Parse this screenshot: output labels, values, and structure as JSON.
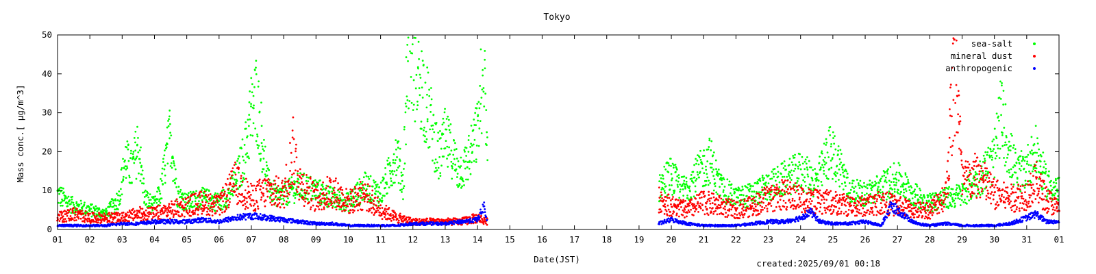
{
  "chart_data": {
    "type": "scatter",
    "title": "Tokyo",
    "xlabel": "Date(JST)",
    "ylabel": "Mass conc.[ μg/m^3]",
    "x_tick_labels": [
      "01",
      "02",
      "03",
      "04",
      "05",
      "06",
      "07",
      "08",
      "09",
      "10",
      "11",
      "12",
      "13",
      "14",
      "15",
      "16",
      "17",
      "18",
      "19",
      "20",
      "21",
      "22",
      "23",
      "24",
      "25",
      "26",
      "27",
      "28",
      "29",
      "30",
      "31",
      "01"
    ],
    "ylim": [
      0,
      50
    ],
    "y_ticks": [
      0,
      10,
      20,
      30,
      40,
      50
    ],
    "xlim_days": [
      0,
      31
    ],
    "gap_days": [
      13.3,
      18.6
    ],
    "grid": false,
    "legend_position": "top-right",
    "series": [
      {
        "name": "sea-salt",
        "color": "#00ff00",
        "samples": [
          [
            0.0,
            9
          ],
          [
            0.5,
            6
          ],
          [
            1.0,
            5
          ],
          [
            1.5,
            4
          ],
          [
            1.9,
            8
          ],
          [
            2.1,
            18
          ],
          [
            2.3,
            15
          ],
          [
            2.5,
            22
          ],
          [
            2.7,
            8
          ],
          [
            3.0,
            6
          ],
          [
            3.2,
            10
          ],
          [
            3.5,
            25
          ],
          [
            3.7,
            9
          ],
          [
            4.0,
            7
          ],
          [
            4.5,
            8
          ],
          [
            5.0,
            7
          ],
          [
            5.3,
            9
          ],
          [
            5.6,
            14
          ],
          [
            5.8,
            20
          ],
          [
            6.0,
            30
          ],
          [
            6.15,
            34
          ],
          [
            6.3,
            25
          ],
          [
            6.5,
            12
          ],
          [
            6.8,
            8
          ],
          [
            7.0,
            9
          ],
          [
            7.5,
            11
          ],
          [
            8.0,
            10
          ],
          [
            8.5,
            8
          ],
          [
            9.0,
            7
          ],
          [
            9.5,
            11
          ],
          [
            10.0,
            9
          ],
          [
            10.3,
            15
          ],
          [
            10.5,
            20
          ],
          [
            10.7,
            11
          ],
          [
            10.8,
            36
          ],
          [
            10.9,
            47
          ],
          [
            11.0,
            43
          ],
          [
            11.2,
            40
          ],
          [
            11.4,
            33
          ],
          [
            11.6,
            26
          ],
          [
            11.8,
            18
          ],
          [
            12.0,
            23
          ],
          [
            12.2,
            20
          ],
          [
            12.4,
            15
          ],
          [
            12.6,
            16
          ],
          [
            12.8,
            20
          ],
          [
            13.0,
            25
          ],
          [
            13.1,
            35
          ],
          [
            13.2,
            47
          ],
          [
            13.3,
            20
          ],
          [
            18.6,
            10
          ],
          [
            18.8,
            13
          ],
          [
            19.0,
            14
          ],
          [
            19.3,
            10
          ],
          [
            19.6,
            12
          ],
          [
            20.0,
            16
          ],
          [
            20.2,
            18
          ],
          [
            20.5,
            11
          ],
          [
            21.0,
            8
          ],
          [
            21.5,
            9
          ],
          [
            22.0,
            11
          ],
          [
            22.5,
            13
          ],
          [
            23.0,
            15
          ],
          [
            23.5,
            12
          ],
          [
            23.9,
            20
          ],
          [
            24.2,
            17
          ],
          [
            24.5,
            10
          ],
          [
            25.0,
            9
          ],
          [
            25.5,
            11
          ],
          [
            26.0,
            13
          ],
          [
            26.5,
            9
          ],
          [
            27.0,
            7
          ],
          [
            27.5,
            8
          ],
          [
            28.0,
            9
          ],
          [
            28.5,
            13
          ],
          [
            29.0,
            18
          ],
          [
            29.2,
            30
          ],
          [
            29.4,
            22
          ],
          [
            29.7,
            14
          ],
          [
            30.0,
            16
          ],
          [
            30.3,
            20
          ],
          [
            30.6,
            12
          ],
          [
            31.0,
            10
          ]
        ]
      },
      {
        "name": "mineral dust",
        "color": "#ff0000",
        "samples": [
          [
            0.0,
            3
          ],
          [
            0.5,
            4
          ],
          [
            1.0,
            3
          ],
          [
            1.5,
            3
          ],
          [
            2.0,
            3
          ],
          [
            2.5,
            4
          ],
          [
            3.0,
            4
          ],
          [
            3.5,
            5
          ],
          [
            4.0,
            6
          ],
          [
            4.5,
            7
          ],
          [
            5.0,
            6
          ],
          [
            5.5,
            12
          ],
          [
            6.0,
            8
          ],
          [
            6.5,
            10
          ],
          [
            7.0,
            9
          ],
          [
            7.3,
            20
          ],
          [
            7.5,
            12
          ],
          [
            8.0,
            8
          ],
          [
            8.5,
            10
          ],
          [
            9.0,
            7
          ],
          [
            9.5,
            9
          ],
          [
            10.0,
            5
          ],
          [
            10.5,
            3
          ],
          [
            11.0,
            2
          ],
          [
            11.5,
            2
          ],
          [
            12.0,
            2
          ],
          [
            12.5,
            2
          ],
          [
            13.0,
            3
          ],
          [
            13.3,
            2
          ],
          [
            18.6,
            8
          ],
          [
            19.0,
            6
          ],
          [
            19.5,
            5
          ],
          [
            20.0,
            7
          ],
          [
            20.5,
            6
          ],
          [
            21.0,
            5
          ],
          [
            21.5,
            6
          ],
          [
            22.0,
            8
          ],
          [
            22.5,
            9
          ],
          [
            23.0,
            8
          ],
          [
            23.5,
            7
          ],
          [
            24.0,
            7
          ],
          [
            24.5,
            6
          ],
          [
            25.0,
            6
          ],
          [
            25.5,
            7
          ],
          [
            26.0,
            6
          ],
          [
            26.5,
            5
          ],
          [
            27.0,
            5
          ],
          [
            27.5,
            9
          ],
          [
            27.8,
            45
          ],
          [
            28.0,
            12
          ],
          [
            28.5,
            14
          ],
          [
            29.0,
            9
          ],
          [
            29.5,
            8
          ],
          [
            30.0,
            9
          ],
          [
            30.3,
            12
          ],
          [
            30.6,
            8
          ],
          [
            31.0,
            5
          ]
        ]
      },
      {
        "name": "anthropogenic",
        "color": "#0000ff",
        "samples": [
          [
            0.0,
            1
          ],
          [
            0.5,
            1
          ],
          [
            1.0,
            1
          ],
          [
            1.5,
            1
          ],
          [
            2.0,
            1.5
          ],
          [
            2.5,
            1.5
          ],
          [
            3.0,
            2
          ],
          [
            3.5,
            2
          ],
          [
            4.0,
            2
          ],
          [
            4.5,
            2.5
          ],
          [
            5.0,
            2
          ],
          [
            5.5,
            3
          ],
          [
            6.0,
            3.5
          ],
          [
            6.5,
            3
          ],
          [
            7.0,
            2.5
          ],
          [
            7.5,
            2
          ],
          [
            8.0,
            1.5
          ],
          [
            8.5,
            1.5
          ],
          [
            9.0,
            1
          ],
          [
            9.5,
            1
          ],
          [
            10.0,
            1
          ],
          [
            10.5,
            1
          ],
          [
            11.0,
            1.5
          ],
          [
            11.5,
            1.5
          ],
          [
            12.0,
            1.5
          ],
          [
            12.5,
            2
          ],
          [
            13.0,
            2.5
          ],
          [
            13.2,
            6
          ],
          [
            13.3,
            2
          ],
          [
            18.6,
            1.5
          ],
          [
            19.0,
            2.5
          ],
          [
            19.5,
            1.5
          ],
          [
            20.0,
            1
          ],
          [
            20.5,
            1
          ],
          [
            21.0,
            1
          ],
          [
            21.5,
            1.5
          ],
          [
            22.0,
            2
          ],
          [
            22.5,
            2
          ],
          [
            23.0,
            3
          ],
          [
            23.3,
            4.5
          ],
          [
            23.6,
            2
          ],
          [
            24.0,
            1.5
          ],
          [
            24.5,
            1.5
          ],
          [
            25.0,
            2
          ],
          [
            25.5,
            1
          ],
          [
            25.8,
            6
          ],
          [
            26.0,
            5
          ],
          [
            26.3,
            3
          ],
          [
            26.6,
            1.5
          ],
          [
            27.0,
            1
          ],
          [
            27.5,
            1.5
          ],
          [
            28.0,
            1
          ],
          [
            28.5,
            1
          ],
          [
            29.0,
            1
          ],
          [
            29.5,
            1.5
          ],
          [
            30.0,
            3
          ],
          [
            30.3,
            4
          ],
          [
            30.6,
            2
          ],
          [
            31.0,
            2
          ]
        ]
      }
    ]
  },
  "footer": {
    "created_label": "created:2025/09/01 00:18"
  }
}
